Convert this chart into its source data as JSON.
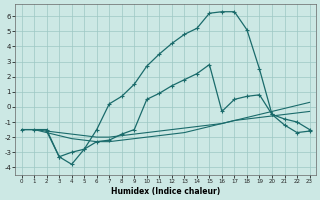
{
  "xlabel": "Humidex (Indice chaleur)",
  "bg_color": "#cce8e4",
  "grid_color": "#9ec8c4",
  "line_color": "#1a6b6b",
  "xlim": [
    -0.5,
    23.5
  ],
  "ylim": [
    -4.5,
    6.8
  ],
  "xticks": [
    0,
    1,
    2,
    3,
    4,
    5,
    6,
    7,
    8,
    9,
    10,
    11,
    12,
    13,
    14,
    15,
    16,
    17,
    18,
    19,
    20,
    21,
    22,
    23
  ],
  "yticks": [
    -4,
    -3,
    -2,
    -1,
    0,
    1,
    2,
    3,
    4,
    5,
    6
  ],
  "line1_x": [
    0,
    1,
    2,
    3,
    4,
    5,
    6,
    7,
    8,
    9,
    10,
    11,
    12,
    13,
    14,
    15,
    16,
    17,
    18,
    19,
    20,
    21,
    22,
    23
  ],
  "line1_y": [
    -1.5,
    -1.5,
    -1.5,
    -3.3,
    -3.0,
    -2.8,
    -1.5,
    0.2,
    0.7,
    1.5,
    2.7,
    3.5,
    4.2,
    4.8,
    5.2,
    6.2,
    6.3,
    6.3,
    5.1,
    2.5,
    -0.5,
    -0.8,
    -1.0,
    -1.5
  ],
  "line2_x": [
    0,
    1,
    2,
    3,
    4,
    5,
    6,
    7,
    8,
    9,
    10,
    11,
    12,
    13,
    14,
    15,
    16,
    17,
    18,
    19,
    20,
    21,
    22,
    23
  ],
  "line2_y": [
    -1.5,
    -1.5,
    -1.6,
    -1.7,
    -1.8,
    -1.9,
    -2.0,
    -2.0,
    -1.9,
    -1.8,
    -1.7,
    -1.6,
    -1.5,
    -1.4,
    -1.3,
    -1.2,
    -1.1,
    -0.9,
    -0.8,
    -0.7,
    -0.6,
    -0.5,
    -0.4,
    -0.3
  ],
  "line3_x": [
    0,
    1,
    2,
    3,
    4,
    5,
    6,
    7,
    8,
    9,
    10,
    11,
    12,
    13,
    14,
    15,
    16,
    17,
    18,
    19,
    20,
    21,
    22,
    23
  ],
  "line3_y": [
    -1.5,
    -1.5,
    -1.7,
    -1.9,
    -2.1,
    -2.2,
    -2.3,
    -2.3,
    -2.2,
    -2.1,
    -2.0,
    -1.9,
    -1.8,
    -1.7,
    -1.5,
    -1.3,
    -1.1,
    -0.9,
    -0.7,
    -0.5,
    -0.3,
    -0.1,
    0.1,
    0.3
  ],
  "line4_x": [
    2,
    3,
    4,
    5,
    6,
    7,
    8,
    9,
    10,
    11,
    12,
    13,
    14,
    15,
    16,
    17,
    18,
    19,
    20,
    21,
    22,
    23
  ],
  "line4_y": [
    -1.6,
    -3.3,
    -3.8,
    -2.8,
    -2.3,
    -2.2,
    -1.8,
    -1.5,
    0.5,
    0.9,
    1.4,
    1.8,
    2.2,
    2.8,
    -0.3,
    0.5,
    0.7,
    0.8,
    -0.5,
    -1.2,
    -1.7,
    -1.6
  ]
}
